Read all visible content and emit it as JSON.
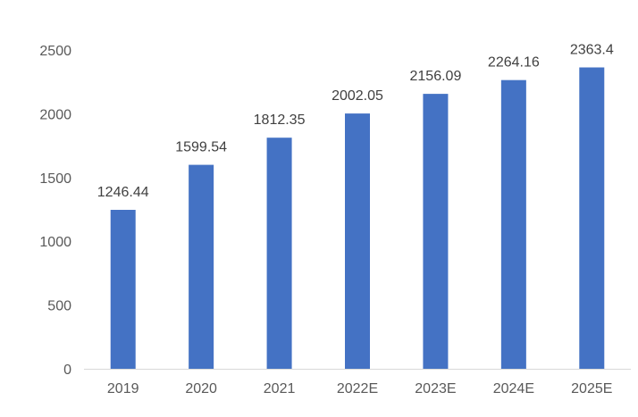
{
  "chart_data": {
    "type": "bar",
    "title": "",
    "xlabel": "",
    "ylabel": "",
    "categories": [
      "2019",
      "2020",
      "2021",
      "2022E",
      "2023E",
      "2024E",
      "2025E"
    ],
    "values": [
      1246.44,
      1599.54,
      1812.35,
      2002.05,
      2156.09,
      2264.16,
      2363.4
    ],
    "data_labels": [
      "1246.44",
      "1599.54",
      "1812.35",
      "2002.05",
      "2156.09",
      "2264.16",
      "2363.4"
    ],
    "ylim": [
      0,
      2500
    ],
    "yticks": [
      0,
      500,
      1000,
      1500,
      2000,
      2500
    ],
    "ytick_labels": [
      "0",
      "500",
      "1000",
      "1500",
      "2000",
      "2500"
    ],
    "grid": false,
    "legend": "none",
    "bar_color": "#4472C4",
    "axis_color": "#D9D9D9"
  }
}
